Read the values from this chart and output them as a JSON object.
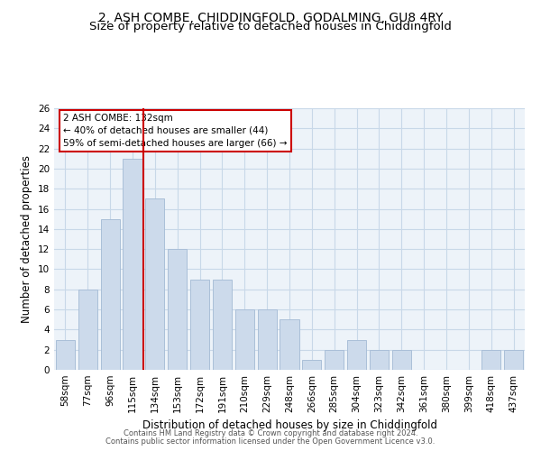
{
  "title": "2, ASH COMBE, CHIDDINGFOLD, GODALMING, GU8 4RY",
  "subtitle": "Size of property relative to detached houses in Chiddingfold",
  "xlabel": "Distribution of detached houses by size in Chiddingfold",
  "ylabel": "Number of detached properties",
  "footnote1": "Contains HM Land Registry data © Crown copyright and database right 2024.",
  "footnote2": "Contains public sector information licensed under the Open Government Licence v3.0.",
  "bar_labels": [
    "58sqm",
    "77sqm",
    "96sqm",
    "115sqm",
    "134sqm",
    "153sqm",
    "172sqm",
    "191sqm",
    "210sqm",
    "229sqm",
    "248sqm",
    "266sqm",
    "285sqm",
    "304sqm",
    "323sqm",
    "342sqm",
    "361sqm",
    "380sqm",
    "399sqm",
    "418sqm",
    "437sqm"
  ],
  "bar_values": [
    3,
    8,
    15,
    21,
    17,
    12,
    9,
    9,
    6,
    6,
    5,
    1,
    2,
    3,
    2,
    2,
    0,
    0,
    0,
    2,
    2
  ],
  "bar_color": "#ccdaeb",
  "bar_edge_color": "#aabfd8",
  "vline_index": 4,
  "vline_color": "#cc0000",
  "annotation_text": "2 ASH COMBE: 132sqm\n← 40% of detached houses are smaller (44)\n59% of semi-detached houses are larger (66) →",
  "annotation_box_color": "#cc0000",
  "ylim": [
    0,
    26
  ],
  "yticks": [
    0,
    2,
    4,
    6,
    8,
    10,
    12,
    14,
    16,
    18,
    20,
    22,
    24,
    26
  ],
  "grid_color": "#c8d8e8",
  "background_color": "#edf3f9",
  "title_fontsize": 10,
  "subtitle_fontsize": 9.5,
  "xlabel_fontsize": 8.5,
  "ylabel_fontsize": 8.5,
  "tick_fontsize": 7.5,
  "annot_fontsize": 7.5,
  "footnote_fontsize": 6.0
}
